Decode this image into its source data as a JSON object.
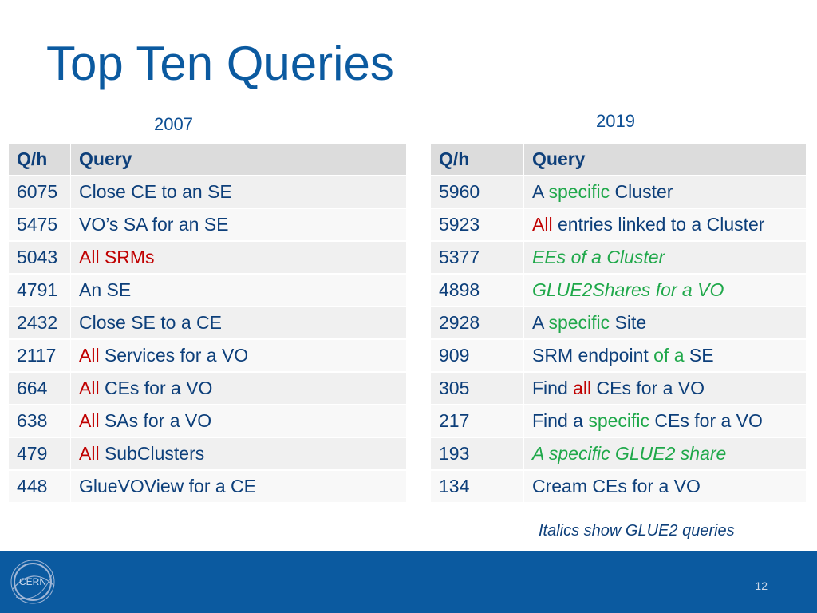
{
  "title": "Top Ten Queries",
  "left": {
    "year": "2007",
    "headers": [
      "Q/h",
      "Query"
    ],
    "rows": [
      {
        "qh": "6075",
        "parts": [
          {
            "t": "Close CE to an SE",
            "c": ""
          }
        ]
      },
      {
        "qh": "5475",
        "parts": [
          {
            "t": "VO’s SA for an SE",
            "c": ""
          }
        ]
      },
      {
        "qh": "5043",
        "parts": [
          {
            "t": "All SRMs",
            "c": "red"
          }
        ]
      },
      {
        "qh": "4791",
        "parts": [
          {
            "t": "An SE",
            "c": ""
          }
        ]
      },
      {
        "qh": "2432",
        "parts": [
          {
            "t": "Close SE to a CE",
            "c": ""
          }
        ]
      },
      {
        "qh": "2117",
        "parts": [
          {
            "t": "All",
            "c": "red"
          },
          {
            "t": " Services for a VO",
            "c": ""
          }
        ]
      },
      {
        "qh": "664",
        "parts": [
          {
            "t": "All",
            "c": "red"
          },
          {
            "t": " CEs for a VO",
            "c": ""
          }
        ]
      },
      {
        "qh": "638",
        "parts": [
          {
            "t": "All",
            "c": "red"
          },
          {
            "t": " SAs for a VO",
            "c": ""
          }
        ]
      },
      {
        "qh": "479",
        "parts": [
          {
            "t": "All",
            "c": "red"
          },
          {
            "t": " SubClusters",
            "c": ""
          }
        ]
      },
      {
        "qh": "448",
        "parts": [
          {
            "t": "GlueVOView for a CE",
            "c": ""
          }
        ]
      }
    ]
  },
  "right": {
    "year": "2019",
    "headers": [
      "Q/h",
      "Query"
    ],
    "rows": [
      {
        "qh": "5960",
        "parts": [
          {
            "t": "A ",
            "c": ""
          },
          {
            "t": "specific",
            "c": "green"
          },
          {
            "t": " Cluster",
            "c": ""
          }
        ]
      },
      {
        "qh": "5923",
        "parts": [
          {
            "t": "All",
            "c": "red"
          },
          {
            "t": " entries linked to a Cluster",
            "c": ""
          }
        ]
      },
      {
        "qh": "5377",
        "parts": [
          {
            "t": "EEs of a Cluster",
            "c": "green ital"
          }
        ]
      },
      {
        "qh": "4898",
        "parts": [
          {
            "t": "GLUE2Shares for a VO",
            "c": "green ital"
          }
        ]
      },
      {
        "qh": "2928",
        "parts": [
          {
            "t": "A ",
            "c": ""
          },
          {
            "t": "specific",
            "c": "green"
          },
          {
            "t": " Site",
            "c": ""
          }
        ]
      },
      {
        "qh": "909",
        "parts": [
          {
            "t": "SRM endpoint ",
            "c": ""
          },
          {
            "t": "of a",
            "c": "green"
          },
          {
            "t": " SE",
            "c": ""
          }
        ]
      },
      {
        "qh": "305",
        "parts": [
          {
            "t": "Find ",
            "c": ""
          },
          {
            "t": "all",
            "c": "red"
          },
          {
            "t": " CEs for a VO",
            "c": ""
          }
        ]
      },
      {
        "qh": "217",
        "parts": [
          {
            "t": "Find a ",
            "c": ""
          },
          {
            "t": "specific",
            "c": "green"
          },
          {
            "t": " CEs for a VO",
            "c": ""
          }
        ]
      },
      {
        "qh": "193",
        "parts": [
          {
            "t": "A specific GLUE2 share",
            "c": "green ital"
          }
        ]
      },
      {
        "qh": "134",
        "parts": [
          {
            "t": "Cream CEs for a VO",
            "c": ""
          }
        ]
      }
    ]
  },
  "note": "Italics show GLUE2 queries",
  "footer": {
    "page_number": "12",
    "logo_text": "CERN"
  },
  "colors": {
    "title": "#0b5aa0",
    "footer": "#0b5aa0",
    "red": "#c00000",
    "green": "#1fa84a"
  }
}
